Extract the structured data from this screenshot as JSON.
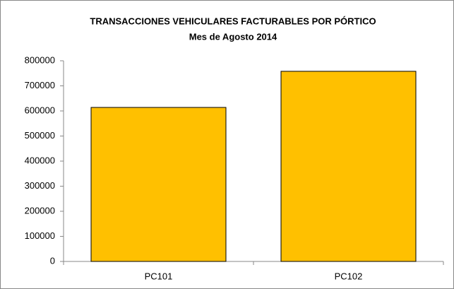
{
  "chart_data": {
    "type": "bar",
    "title": "TRANSACCIONES VEHICULARES FACTURABLES POR PÓRTICO",
    "subtitle": "Mes de Agosto 2014",
    "categories": [
      "PC101",
      "PC102"
    ],
    "values": [
      614000,
      758000
    ],
    "color": "#ffc000",
    "ylim": [
      0,
      800000
    ],
    "yticks": [
      0,
      100000,
      200000,
      300000,
      400000,
      500000,
      600000,
      700000,
      800000
    ],
    "grid": false
  }
}
